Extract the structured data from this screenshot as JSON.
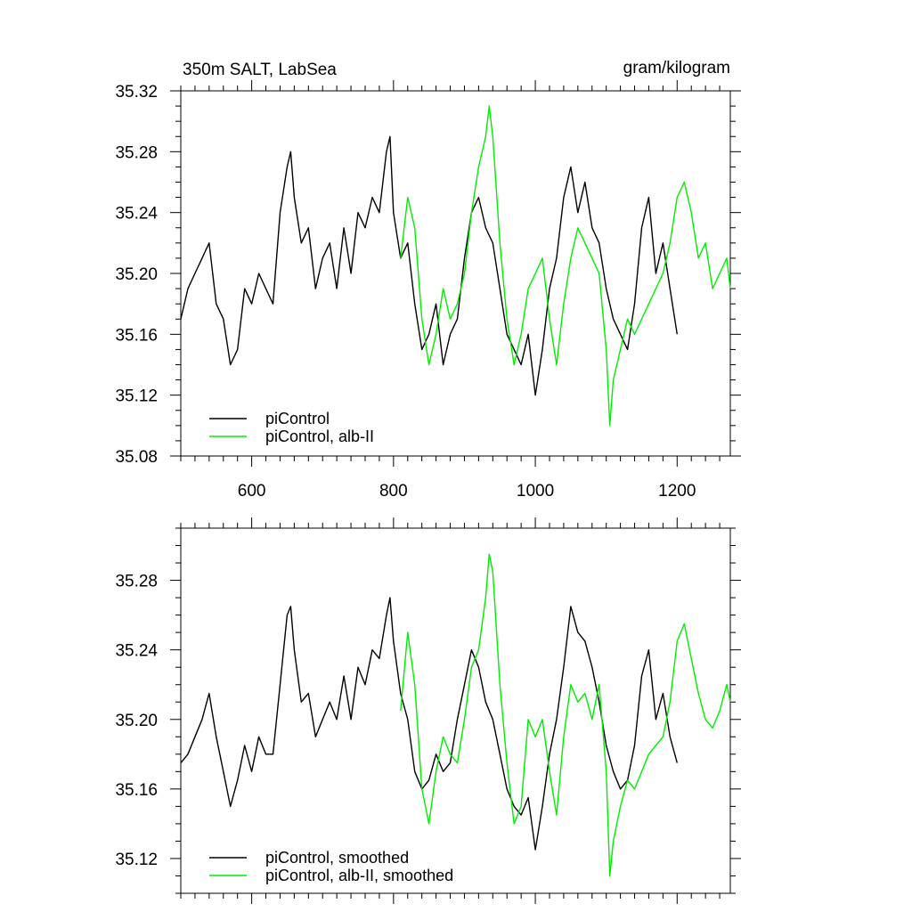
{
  "chart_data": [
    {
      "type": "line",
      "title_left": "350m SALT, LabSea",
      "title_right": "gram/kilogram",
      "xlabel": "",
      "ylabel": "",
      "xlim": [
        500,
        1275
      ],
      "ylim": [
        35.08,
        35.32
      ],
      "x_ticks": [
        600,
        800,
        1000,
        1200
      ],
      "x_tick_labels": [
        "600",
        "800",
        "1000",
        "1200"
      ],
      "y_ticks": [
        35.08,
        35.12,
        35.16,
        35.2,
        35.24,
        35.28,
        35.32
      ],
      "y_tick_labels": [
        "35.08",
        "35.12",
        "35.16",
        "35.20",
        "35.24",
        "35.28",
        "35.32"
      ],
      "grid": false,
      "legend_position": "bottom-left",
      "series": [
        {
          "name": "piControl",
          "color": "#000000",
          "x": [
            500,
            510,
            520,
            530,
            540,
            550,
            560,
            570,
            580,
            590,
            600,
            610,
            620,
            630,
            640,
            650,
            655,
            660,
            670,
            680,
            690,
            700,
            710,
            720,
            730,
            740,
            750,
            760,
            770,
            780,
            790,
            795,
            800,
            810,
            820,
            830,
            840,
            850,
            860,
            870,
            880,
            890,
            900,
            910,
            920,
            930,
            940,
            950,
            960,
            970,
            980,
            990,
            1000,
            1010,
            1020,
            1030,
            1040,
            1050,
            1060,
            1070,
            1080,
            1090,
            1100,
            1110,
            1120,
            1130,
            1140,
            1150,
            1160,
            1170,
            1180,
            1190,
            1200
          ],
          "y": [
            35.17,
            35.19,
            35.2,
            35.21,
            35.22,
            35.18,
            35.17,
            35.14,
            35.15,
            35.19,
            35.18,
            35.2,
            35.19,
            35.18,
            35.24,
            35.27,
            35.28,
            35.25,
            35.22,
            35.23,
            35.19,
            35.21,
            35.22,
            35.19,
            35.23,
            35.2,
            35.24,
            35.23,
            35.25,
            35.24,
            35.28,
            35.29,
            35.24,
            35.21,
            35.22,
            35.18,
            35.15,
            35.16,
            35.18,
            35.14,
            35.16,
            35.17,
            35.21,
            35.24,
            35.25,
            35.23,
            35.22,
            35.19,
            35.16,
            35.15,
            35.14,
            35.16,
            35.12,
            35.15,
            35.19,
            35.21,
            35.25,
            35.27,
            35.24,
            35.26,
            35.23,
            35.22,
            35.19,
            35.17,
            35.16,
            35.15,
            35.18,
            35.23,
            35.25,
            35.2,
            35.22,
            35.19,
            35.16
          ]
        },
        {
          "name": "piControl, alb-II",
          "color": "#00ee00",
          "x": [
            810,
            820,
            830,
            840,
            850,
            860,
            870,
            880,
            890,
            900,
            910,
            920,
            930,
            935,
            940,
            950,
            960,
            970,
            980,
            990,
            1000,
            1010,
            1020,
            1030,
            1040,
            1050,
            1060,
            1070,
            1080,
            1090,
            1100,
            1105,
            1110,
            1120,
            1130,
            1140,
            1150,
            1160,
            1170,
            1180,
            1190,
            1200,
            1210,
            1220,
            1230,
            1240,
            1250,
            1260,
            1270,
            1275
          ],
          "y": [
            35.21,
            35.25,
            35.23,
            35.17,
            35.14,
            35.16,
            35.19,
            35.17,
            35.18,
            35.2,
            35.24,
            35.27,
            35.29,
            35.31,
            35.29,
            35.22,
            35.17,
            35.14,
            35.16,
            35.19,
            35.2,
            35.21,
            35.17,
            35.14,
            35.18,
            35.21,
            35.23,
            35.22,
            35.21,
            35.2,
            35.15,
            35.1,
            35.13,
            35.15,
            35.17,
            35.16,
            35.17,
            35.18,
            35.19,
            35.2,
            35.22,
            35.25,
            35.26,
            35.24,
            35.21,
            35.22,
            35.19,
            35.2,
            35.21,
            35.19
          ]
        }
      ]
    },
    {
      "type": "line",
      "title_left": "",
      "title_right": "",
      "xlabel": "",
      "ylabel": "",
      "xlim": [
        500,
        1275
      ],
      "ylim": [
        35.1,
        35.31
      ],
      "x_ticks": [
        600,
        800,
        1000,
        1200
      ],
      "x_tick_labels": [],
      "y_ticks": [
        35.12,
        35.16,
        35.2,
        35.24,
        35.28
      ],
      "y_tick_labels": [
        "35.12",
        "35.16",
        "35.20",
        "35.24",
        "35.28"
      ],
      "grid": false,
      "legend_position": "bottom-left",
      "series": [
        {
          "name": "piControl, smoothed",
          "color": "#000000",
          "x": [
            500,
            510,
            520,
            530,
            540,
            550,
            560,
            570,
            580,
            590,
            600,
            610,
            620,
            630,
            640,
            650,
            655,
            660,
            670,
            680,
            690,
            700,
            710,
            720,
            730,
            740,
            750,
            760,
            770,
            780,
            790,
            795,
            800,
            810,
            820,
            830,
            840,
            850,
            860,
            870,
            880,
            890,
            900,
            910,
            920,
            930,
            940,
            950,
            960,
            970,
            980,
            990,
            1000,
            1010,
            1020,
            1030,
            1040,
            1050,
            1060,
            1070,
            1080,
            1090,
            1100,
            1110,
            1120,
            1130,
            1140,
            1150,
            1160,
            1170,
            1180,
            1190,
            1200
          ],
          "y": [
            35.175,
            35.18,
            35.19,
            35.2,
            35.215,
            35.19,
            35.17,
            35.15,
            35.165,
            35.185,
            35.17,
            35.19,
            35.18,
            35.18,
            35.22,
            35.26,
            35.265,
            35.24,
            35.21,
            35.215,
            35.19,
            35.2,
            35.21,
            35.2,
            35.225,
            35.2,
            35.23,
            35.22,
            35.24,
            35.235,
            35.26,
            35.27,
            35.245,
            35.215,
            35.2,
            35.17,
            35.16,
            35.165,
            35.18,
            35.17,
            35.175,
            35.2,
            35.22,
            35.24,
            35.23,
            35.21,
            35.2,
            35.18,
            35.16,
            35.15,
            35.145,
            35.155,
            35.125,
            35.15,
            35.18,
            35.2,
            35.23,
            35.265,
            35.25,
            35.245,
            35.23,
            35.21,
            35.185,
            35.17,
            35.16,
            35.165,
            35.185,
            35.225,
            35.24,
            35.2,
            35.215,
            35.19,
            35.175
          ]
        },
        {
          "name": "piControl, alb-II, smoothed",
          "color": "#00ee00",
          "x": [
            810,
            820,
            830,
            840,
            850,
            860,
            870,
            880,
            890,
            900,
            910,
            920,
            930,
            935,
            940,
            950,
            960,
            970,
            980,
            990,
            1000,
            1010,
            1020,
            1030,
            1040,
            1050,
            1060,
            1070,
            1080,
            1090,
            1100,
            1105,
            1110,
            1120,
            1130,
            1140,
            1150,
            1160,
            1170,
            1180,
            1190,
            1200,
            1210,
            1220,
            1230,
            1240,
            1250,
            1260,
            1270,
            1275
          ],
          "y": [
            35.205,
            35.25,
            35.22,
            35.16,
            35.14,
            35.17,
            35.19,
            35.18,
            35.175,
            35.2,
            35.23,
            35.24,
            35.27,
            35.295,
            35.285,
            35.22,
            35.175,
            35.14,
            35.15,
            35.2,
            35.19,
            35.2,
            35.17,
            35.145,
            35.19,
            35.22,
            35.21,
            35.215,
            35.2,
            35.22,
            35.17,
            35.11,
            35.13,
            35.15,
            35.165,
            35.16,
            35.17,
            35.18,
            35.185,
            35.19,
            35.21,
            35.245,
            35.255,
            35.235,
            35.215,
            35.2,
            35.195,
            35.205,
            35.22,
            35.21
          ]
        }
      ]
    }
  ]
}
